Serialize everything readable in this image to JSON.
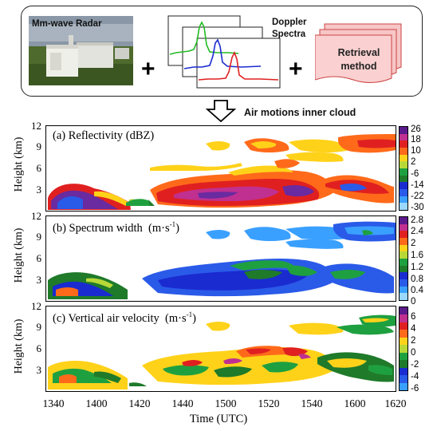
{
  "workflow": {
    "radar_label": "Mm-wave Radar",
    "spectra_label": "Doppler Spectra",
    "retrieval_label": "Retrieval method",
    "plus_symbol": "+",
    "arrow_caption": "Air motions inner cloud"
  },
  "axes": {
    "ylabel": "Height (km)",
    "yticks": [
      "12",
      "9",
      "6",
      "3"
    ],
    "xlabel": "Time (UTC)",
    "xticks": [
      "1340",
      "1400",
      "1420",
      "1440",
      "1500",
      "1520",
      "1540",
      "1600",
      "1620"
    ]
  },
  "panels": [
    {
      "title": "(a) Reflectivity (dBZ)",
      "colorbar_ticks": [
        "26",
        "18",
        "10",
        "2",
        "-6",
        "-14",
        "-22",
        "-30"
      ],
      "colorbar_colors": [
        "#5a1a8c",
        "#c03090",
        "#e02020",
        "#ff6a1a",
        "#ffd21a",
        "#b8d838",
        "#1fa040",
        "#1f7a2a",
        "#1a2bd0",
        "#2a5ae8",
        "#3aa0ff",
        "#9ad8ff"
      ]
    },
    {
      "title_main": "(b) Spectrum width",
      "title_unit": "(m·s",
      "title_exp": "-1",
      "title_close": ")",
      "colorbar_ticks": [
        "2.8",
        "2.4",
        "2",
        "1.6",
        "1.2",
        "0.8",
        "0.4",
        "0"
      ],
      "colorbar_colors": [
        "#5a1a8c",
        "#c03090",
        "#e02020",
        "#ff6a1a",
        "#ffd21a",
        "#b8d838",
        "#1fa040",
        "#1f7a2a",
        "#1a2bd0",
        "#2a5ae8",
        "#3aa0ff",
        "#9ad8ff"
      ]
    },
    {
      "title_main": "(c) Vertical air velocity",
      "title_unit": "(m·s",
      "title_exp": "-1",
      "title_close": ")",
      "colorbar_ticks": [
        "6",
        "4",
        "2",
        "0",
        "-2",
        "-4",
        "-6"
      ],
      "colorbar_colors": [
        "#5a1a8c",
        "#c03090",
        "#e02020",
        "#ff6a1a",
        "#ffd21a",
        "#b8d838",
        "#1fa040",
        "#1f7a2a",
        "#1a2bd0",
        "#2a5ae8",
        "#3aa0ff"
      ]
    }
  ]
}
